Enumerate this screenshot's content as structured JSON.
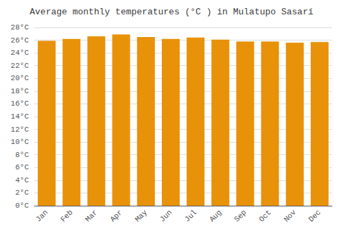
{
  "chart_data": {
    "type": "bar",
    "title": "Average monthly temperatures (°C ) in Mulatupo Sasarí",
    "categories": [
      "Jan",
      "Feb",
      "Mar",
      "Apr",
      "May",
      "Jun",
      "Jul",
      "Aug",
      "Sep",
      "Oct",
      "Nov",
      "Dec"
    ],
    "values": [
      25.9,
      26.2,
      26.6,
      26.9,
      26.5,
      26.2,
      26.4,
      26.1,
      25.8,
      25.8,
      25.6,
      25.7
    ],
    "color": "#E8920A",
    "ylim": [
      0,
      28
    ],
    "yticks": [
      {
        "value": 0,
        "label": "0°C"
      },
      {
        "value": 2,
        "label": "2°C"
      },
      {
        "value": 4,
        "label": "4°C"
      },
      {
        "value": 6,
        "label": "6°C"
      },
      {
        "value": 8,
        "label": "8°C"
      },
      {
        "value": 10,
        "label": "10°C"
      },
      {
        "value": 12,
        "label": "12°C"
      },
      {
        "value": 14,
        "label": "14°C"
      },
      {
        "value": 16,
        "label": "16°C"
      },
      {
        "value": 18,
        "label": "18°C"
      },
      {
        "value": 20,
        "label": "20°C"
      },
      {
        "value": 22,
        "label": "22°C"
      },
      {
        "value": 24,
        "label": "24°C"
      },
      {
        "value": 26,
        "label": "26°C"
      },
      {
        "value": 28,
        "label": "28°C"
      }
    ],
    "grid": true
  }
}
